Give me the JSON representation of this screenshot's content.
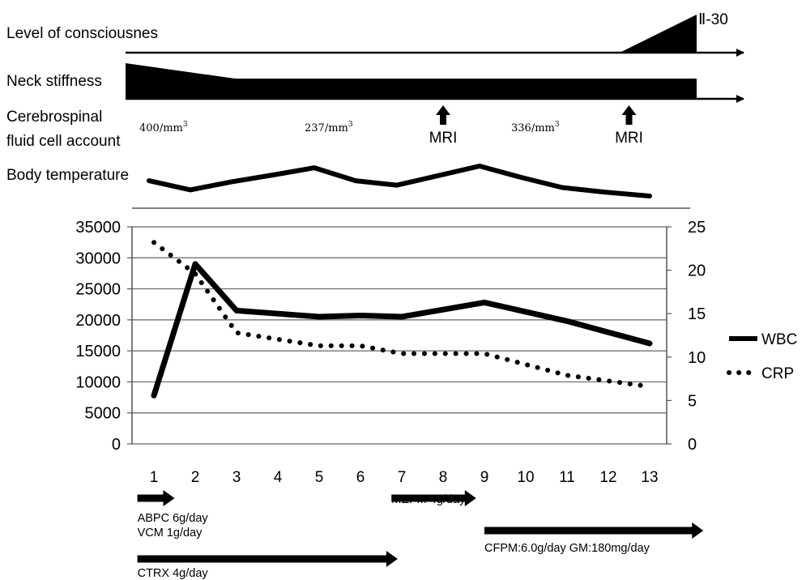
{
  "timeline": {
    "consciousness": {
      "label": "Level of consciousnes",
      "end_label": "Ⅱ-30"
    },
    "neck": {
      "label": "Neck stiffness"
    },
    "csf": {
      "label_line1": "Cerebrospinal",
      "label_line2": "fluid cell account",
      "counts": [
        {
          "value": "400/mm",
          "sup": "3",
          "day": 1
        },
        {
          "value": "237/mm",
          "sup": "3",
          "day": 5
        },
        {
          "value": "336/mm",
          "sup": "3",
          "day": 10
        }
      ],
      "mri": [
        {
          "label": "MRI",
          "day": 8
        },
        {
          "label": "MRI",
          "day": 12.5
        }
      ]
    },
    "temperature": {
      "label": "Body temperature",
      "x": [
        1,
        2,
        3,
        4,
        5,
        6,
        7,
        8,
        9,
        10,
        11,
        12,
        13
      ],
      "values": [
        0.45,
        0.18,
        0.42,
        0.62,
        0.83,
        0.45,
        0.32,
        0.6,
        0.88,
        0.55,
        0.25,
        0.12,
        0.0
      ]
    }
  },
  "chart_data": {
    "type": "line",
    "x": [
      1,
      2,
      3,
      4,
      5,
      6,
      7,
      8,
      9,
      10,
      11,
      12,
      13
    ],
    "categories": [
      "1",
      "2",
      "3",
      "4",
      "5",
      "6",
      "7",
      "8",
      "9",
      "10",
      "11",
      "12",
      "13"
    ],
    "y_left": {
      "ylim": [
        0,
        35000
      ],
      "ticks": [
        "35000",
        "30000",
        "25000",
        "20000",
        "15000",
        "10000",
        "5000",
        "0"
      ]
    },
    "y_right": {
      "ylim": [
        0,
        25
      ],
      "ticks": [
        "25",
        "20",
        "15",
        "10",
        "5",
        "0"
      ]
    },
    "grid": "horizontal",
    "legend_position": "right",
    "series": [
      {
        "name": "WBC",
        "axis": "left",
        "style": "solid",
        "x": [
          1,
          2,
          3,
          5,
          6,
          7,
          9,
          11,
          13
        ],
        "values": [
          7800,
          29000,
          21500,
          20500,
          20700,
          20500,
          22800,
          19800,
          16200
        ]
      },
      {
        "name": "CRP",
        "axis": "right",
        "style": "dotted",
        "x": [
          1,
          2,
          3,
          5,
          6,
          7,
          9,
          11,
          13
        ],
        "values": [
          23.2,
          19.6,
          12.8,
          11.3,
          11.3,
          10.4,
          10.4,
          7.9,
          6.6
        ]
      }
    ]
  },
  "treatments": [
    {
      "lines": [
        "ABPC 6g/day",
        "VCM 1g/day"
      ],
      "start": 0.6,
      "end": 1.5
    },
    {
      "lines": [
        "MEPM 4g/day"
      ],
      "start": 6.75,
      "end": 8.8
    },
    {
      "lines": [
        "CFPM:6.0g/day  GM:180mg/day"
      ],
      "start": 9,
      "end": 14.3
    },
    {
      "lines": [
        "CTRX 4g/day"
      ],
      "start": 0.6,
      "end": 6.9
    }
  ]
}
